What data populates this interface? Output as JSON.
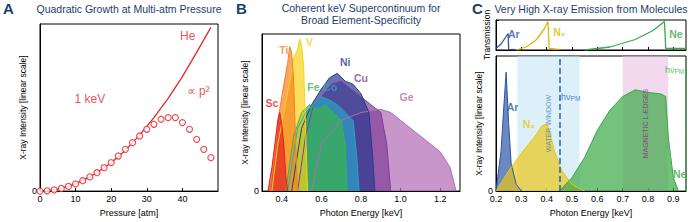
{
  "chart_data": [
    {
      "panel": "A",
      "type": "scatter",
      "title": "Quadratic Growth at Multi-atm Pressure",
      "x_label": "Pressure [atm]",
      "y_label": "X-ray Intensity [linear scale]",
      "xlim": [
        0,
        50
      ],
      "xticks": [
        0,
        10,
        20,
        30,
        40
      ],
      "ylim": [
        0,
        1
      ],
      "yticks": [
        0
      ],
      "grid": false,
      "color": "#e3262a",
      "series": [
        {
          "type": "scatter",
          "marker": "open_circle",
          "color": "#e3262a",
          "x": [
            0,
            2,
            4,
            6,
            8,
            10,
            12,
            14,
            16,
            18,
            20,
            22,
            24,
            26,
            28,
            30,
            32,
            34,
            36,
            38,
            40,
            42,
            44,
            46,
            48
          ],
          "values": [
            0,
            0.002,
            0.007,
            0.016,
            0.028,
            0.043,
            0.062,
            0.085,
            0.11,
            0.14,
            0.17,
            0.21,
            0.25,
            0.29,
            0.33,
            0.37,
            0.4,
            0.43,
            0.44,
            0.44,
            0.41,
            0.37,
            0.31,
            0.25,
            0.2
          ]
        },
        {
          "type": "line",
          "line_style": "solid",
          "color": "#e3262a",
          "x": [
            0,
            4,
            8,
            12,
            16,
            20,
            24,
            28,
            32,
            36,
            40,
            44,
            48
          ],
          "values": [
            0,
            0.007,
            0.028,
            0.063,
            0.11,
            0.17,
            0.245,
            0.335,
            0.44,
            0.555,
            0.685,
            0.83,
            0.98
          ]
        }
      ],
      "annotations": [
        {
          "text": "He",
          "x": 41.5,
          "y": 0.93
        },
        {
          "text": "1 keV",
          "x": 14,
          "y": 0.55
        },
        {
          "text": "∝ p²",
          "x": 44.5,
          "y": 0.6
        }
      ]
    },
    {
      "panel": "B",
      "type": "area",
      "title": "Coherent keV Supercontinuum for\nBroad Element-Specificity",
      "x_label": "Photon Energy [keV]",
      "y_label": "X-ray Intensity [linear scale]",
      "xlim": [
        0.3,
        1.3
      ],
      "xticks": [
        0.4,
        0.6,
        0.8,
        {
          "value": 1,
          "label": "1.0"
        },
        1.2
      ],
      "ylim": [
        0,
        1
      ],
      "yticks": [
        0
      ],
      "grid": false,
      "series": [
        {
          "name": "Ge",
          "color": "#b06ab3",
          "label_at": [
            1.03,
            0.6
          ],
          "x": [
            0.55,
            0.6,
            0.7,
            0.8,
            0.9,
            0.95,
            1.0,
            1.05,
            1.1,
            1.15,
            1.2,
            1.25,
            1.28
          ],
          "values": [
            0,
            0.3,
            0.45,
            0.5,
            0.52,
            0.5,
            0.45,
            0.4,
            0.35,
            0.3,
            0.25,
            0.15,
            0
          ]
        },
        {
          "name": "Cu",
          "color": "#7f3f98",
          "label_at": [
            0.8,
            0.72
          ],
          "x": [
            0.48,
            0.52,
            0.56,
            0.6,
            0.65,
            0.7,
            0.75,
            0.8,
            0.85,
            0.9,
            0.93,
            0.95
          ],
          "values": [
            0,
            0.35,
            0.55,
            0.6,
            0.68,
            0.7,
            0.65,
            0.6,
            0.55,
            0.5,
            0.3,
            0
          ]
        },
        {
          "name": "Ni",
          "color": "#2b3990",
          "label_at": [
            0.72,
            0.82
          ],
          "x": [
            0.45,
            0.5,
            0.55,
            0.6,
            0.64,
            0.68,
            0.72,
            0.76,
            0.8,
            0.84,
            0.86,
            0.87
          ],
          "values": [
            0,
            0.4,
            0.55,
            0.65,
            0.72,
            0.75,
            0.7,
            0.68,
            0.62,
            0.5,
            0.2,
            0
          ]
        },
        {
          "name": "Co",
          "color": "#29a3c9",
          "label_at": [
            0.645,
            0.66
          ],
          "x": [
            0.43,
            0.48,
            0.52,
            0.56,
            0.6,
            0.64,
            0.68,
            0.72,
            0.76,
            0.78,
            0.79
          ],
          "values": [
            0,
            0.4,
            0.5,
            0.55,
            0.6,
            0.58,
            0.55,
            0.5,
            0.45,
            0.2,
            0
          ]
        },
        {
          "name": "Fe",
          "color": "#3cb44b",
          "label_at": [
            0.56,
            0.66
          ],
          "x": [
            0.42,
            0.46,
            0.5,
            0.54,
            0.58,
            0.62,
            0.66,
            0.7,
            0.72,
            0.73
          ],
          "values": [
            0,
            0.35,
            0.5,
            0.55,
            0.52,
            0.55,
            0.5,
            0.45,
            0.3,
            0
          ]
        },
        {
          "name": "V",
          "color": "#f7d117",
          "label_at": [
            0.54,
            0.95
          ],
          "x": [
            0.35,
            0.38,
            0.41,
            0.44,
            0.46,
            0.48,
            0.49,
            0.5,
            0.51,
            0.52,
            0.53
          ],
          "values": [
            0,
            0.3,
            0.5,
            0.7,
            0.85,
            0.9,
            0.97,
            0.92,
            0.8,
            0.4,
            0
          ]
        },
        {
          "name": "Ti",
          "color": "#f58220",
          "label_at": [
            0.41,
            0.9
          ],
          "x": [
            0.34,
            0.36,
            0.38,
            0.4,
            0.42,
            0.43,
            0.44,
            0.45,
            0.46,
            0.47,
            0.48
          ],
          "values": [
            0,
            0.2,
            0.45,
            0.6,
            0.75,
            0.82,
            0.92,
            0.88,
            0.7,
            0.3,
            0
          ]
        },
        {
          "name": "Sc",
          "color": "#e41f26",
          "label_at": [
            0.35,
            0.56
          ],
          "x": [
            0.33,
            0.35,
            0.37,
            0.38,
            0.39,
            0.4,
            0.41,
            0.42,
            0.43
          ],
          "values": [
            0,
            0.15,
            0.35,
            0.45,
            0.5,
            0.42,
            0.3,
            0.1,
            0
          ]
        }
      ]
    },
    {
      "panel": "C",
      "type": "line",
      "title": "Very High X-ray Emission from Molecules",
      "y_label": "Transmission",
      "tick_labels": false,
      "xlim": [
        0.2,
        0.95
      ],
      "xticks": [
        0.2,
        0.3,
        0.4,
        0.5,
        0.6,
        0.7,
        0.8,
        0.9
      ],
      "ylim": [
        0,
        1
      ],
      "yticks": [
        0,
        1
      ],
      "grid": false,
      "series": [
        {
          "name": "Ar",
          "color": "#2e55a5",
          "label_at": [
            0.27,
            0.55
          ],
          "x": [
            0.2,
            0.22,
            0.24,
            0.248,
            0.25,
            0.3
          ],
          "values": [
            0.05,
            0.2,
            0.45,
            0.55,
            0.02,
            0
          ]
        },
        {
          "name": "N₂",
          "color": "#e0b800",
          "label_at": [
            0.45,
            0.6
          ],
          "x": [
            0.28,
            0.32,
            0.36,
            0.39,
            0.405,
            0.41,
            0.45
          ],
          "values": [
            0,
            0.1,
            0.35,
            0.7,
            0.95,
            0.05,
            0.02
          ]
        },
        {
          "name": "Ne",
          "color": "#3aa845",
          "label_at": [
            0.91,
            0.55
          ],
          "x": [
            0.55,
            0.65,
            0.75,
            0.82,
            0.865,
            0.87,
            0.95
          ],
          "values": [
            0,
            0.1,
            0.35,
            0.65,
            0.95,
            0.05,
            0.05
          ]
        }
      ]
    },
    {
      "type": "area",
      "x_label": "Photon Energy [keV]",
      "y_label": "X-ray Intensity [linear scale]",
      "xlim": [
        0.2,
        0.95
      ],
      "xticks": [
        0.2,
        0.3,
        0.4,
        0.5,
        0.6,
        0.7,
        0.8,
        0.9
      ],
      "ylim": [
        0,
        1
      ],
      "yticks": [
        0
      ],
      "grid": false,
      "series": [
        {
          "name": "Ar",
          "color": "#2e55a5",
          "label_at": [
            0.265,
            0.62
          ],
          "x": [
            0.2,
            0.22,
            0.23,
            0.24,
            0.25,
            0.26,
            0.28,
            0.3
          ],
          "values": [
            0,
            0.3,
            0.6,
            0.88,
            0.5,
            0.2,
            0.05,
            0
          ]
        },
        {
          "name": "N₂",
          "color": "#e8c617",
          "label_at": [
            0.33,
            0.5
          ],
          "x": [
            0.2,
            0.25,
            0.3,
            0.33,
            0.36,
            0.38,
            0.4,
            0.41,
            0.43,
            0.46,
            0.5,
            0.55
          ],
          "values": [
            0,
            0.15,
            0.28,
            0.35,
            0.42,
            0.48,
            0.5,
            0.45,
            0.3,
            0.15,
            0.05,
            0
          ]
        },
        {
          "name": "Ne",
          "color": "#3aa845",
          "label_at": [
            0.925,
            0.13
          ],
          "x": [
            0.45,
            0.5,
            0.55,
            0.6,
            0.65,
            0.7,
            0.75,
            0.8,
            0.85,
            0.87,
            0.88,
            0.9,
            0.92
          ],
          "values": [
            0,
            0.1,
            0.25,
            0.45,
            0.6,
            0.7,
            0.75,
            0.73,
            0.72,
            0.7,
            0.4,
            0.1,
            0
          ]
        }
      ],
      "bands": [
        {
          "label": "WATER WINDOW",
          "x": [
            0.284,
            0.53
          ],
          "color": "#bfe3f5",
          "text_color": "#3f7fb0"
        },
        {
          "label": "MAGNETIC L-EDGES",
          "x": [
            0.7,
            0.88
          ],
          "color": "#e7b9de",
          "text_color": "#8b2c7f"
        }
      ],
      "vlines": [
        {
          "x": 0.45,
          "color": "#2f5fb3",
          "line_style": "dashed"
        },
        {
          "x": 0.95,
          "color": "#3aa845",
          "line_style": "dashed"
        }
      ],
      "annotations": [
        {
          "text": "hν",
          "subscript": "PM",
          "x": 0.495,
          "y": 0.7,
          "color": "#2f5fb3"
        },
        {
          "text": "hν",
          "subscript": "PM",
          "x": 0.905,
          "y": 0.9,
          "color": "#3aa845"
        }
      ]
    }
  ]
}
